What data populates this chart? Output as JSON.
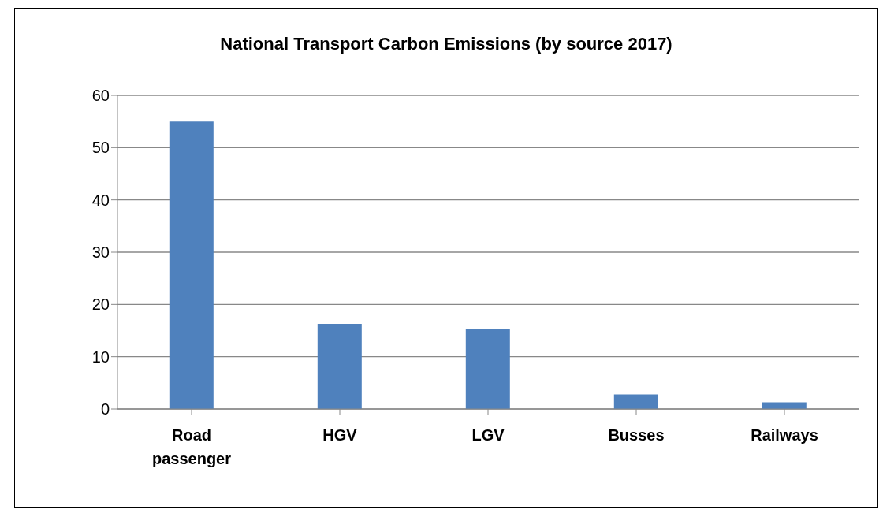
{
  "chart_data": {
    "type": "bar",
    "title": "National Transport Carbon Emissions (by source 2017)",
    "categories": [
      "Road passenger",
      "HGV",
      "LGV",
      "Busses",
      "Railways"
    ],
    "values": [
      55,
      16.3,
      15.3,
      2.8,
      1.3
    ],
    "color": "#4f81bd",
    "ylim": [
      0,
      60
    ],
    "yticks": [
      0,
      10,
      20,
      30,
      40,
      50,
      60
    ],
    "grid": "y"
  }
}
